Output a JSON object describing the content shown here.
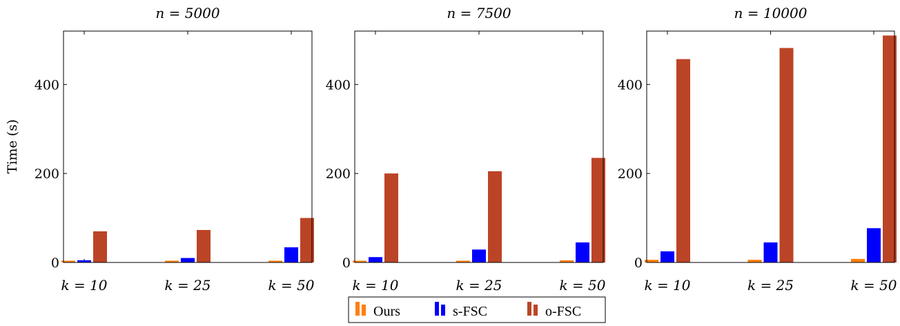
{
  "chart_data": {
    "type": "bar",
    "ylabel": "Time (s)",
    "legend": {
      "placement": "bottom-center",
      "entries": [
        "Ours",
        "s-FSC",
        "o-FSC"
      ]
    },
    "colors": {
      "Ours": "#ff7f0e",
      "s-FSC": "#0000ff",
      "o-FSC": "#bb4426"
    },
    "panels": [
      {
        "title": "n = 5000",
        "categories": [
          "k = 10",
          "k = 25",
          "k = 50"
        ],
        "ylim": [
          0,
          520
        ],
        "yticks": [
          0,
          200,
          400
        ],
        "series": [
          {
            "name": "Ours",
            "values": [
              4,
              4,
              4
            ]
          },
          {
            "name": "s-FSC",
            "values": [
              5,
              10,
              34
            ]
          },
          {
            "name": "o-FSC",
            "values": [
              70,
              73,
              100
            ]
          }
        ]
      },
      {
        "title": "n = 7500",
        "categories": [
          "k = 10",
          "k = 25",
          "k = 50"
        ],
        "ylim": [
          0,
          520
        ],
        "yticks": [
          0,
          200,
          400
        ],
        "series": [
          {
            "name": "Ours",
            "values": [
              4,
              4,
              5
            ]
          },
          {
            "name": "s-FSC",
            "values": [
              12,
              29,
              45
            ]
          },
          {
            "name": "o-FSC",
            "values": [
              200,
              205,
              235
            ]
          }
        ]
      },
      {
        "title": "n = 10000",
        "categories": [
          "k = 10",
          "k = 25",
          "k = 50"
        ],
        "ylim": [
          0,
          520
        ],
        "yticks": [
          0,
          200,
          400
        ],
        "series": [
          {
            "name": "Ours",
            "values": [
              6,
              6,
              8
            ]
          },
          {
            "name": "s-FSC",
            "values": [
              25,
              45,
              77
            ]
          },
          {
            "name": "o-FSC",
            "values": [
              457,
              482,
              510
            ]
          }
        ]
      }
    ]
  }
}
